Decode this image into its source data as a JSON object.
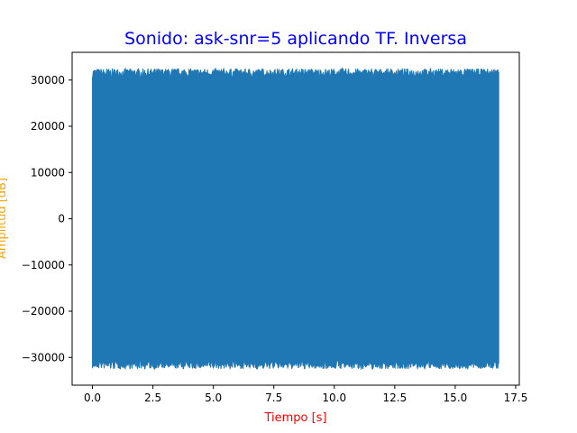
{
  "chart_data": {
    "type": "line",
    "title": "Sonido: ask-snr=5 aplicando TF. Inversa",
    "xlabel": "Tiempo [s]",
    "ylabel": "Amplitud [dB]",
    "xlim": [
      -0.84,
      17.65
    ],
    "ylim": [
      -36000,
      36000
    ],
    "x_ticks": [
      0.0,
      2.5,
      5.0,
      7.5,
      10.0,
      12.5,
      15.0,
      17.5
    ],
    "x_tick_labels": [
      "0.0",
      "2.5",
      "5.0",
      "7.5",
      "10.0",
      "12.5",
      "15.0",
      "17.5"
    ],
    "y_ticks": [
      -30000,
      -20000,
      -10000,
      0,
      10000,
      20000,
      30000
    ],
    "y_tick_labels": [
      "−30000",
      "−20000",
      "−10000",
      "0",
      "10000",
      "20000",
      "30000"
    ],
    "grid": false,
    "series": [
      {
        "x_start": 0.0,
        "x_end": 16.8,
        "envelope_upper": 32500,
        "envelope_lower": -32500,
        "typical_upper": 30500,
        "typical_lower": -30500
      }
    ]
  },
  "colors": {
    "title": "#0000ff",
    "xlabel": "#ff0000",
    "ylabel": "#ffa500",
    "series": "#1f77b4",
    "axes": "#000000"
  }
}
